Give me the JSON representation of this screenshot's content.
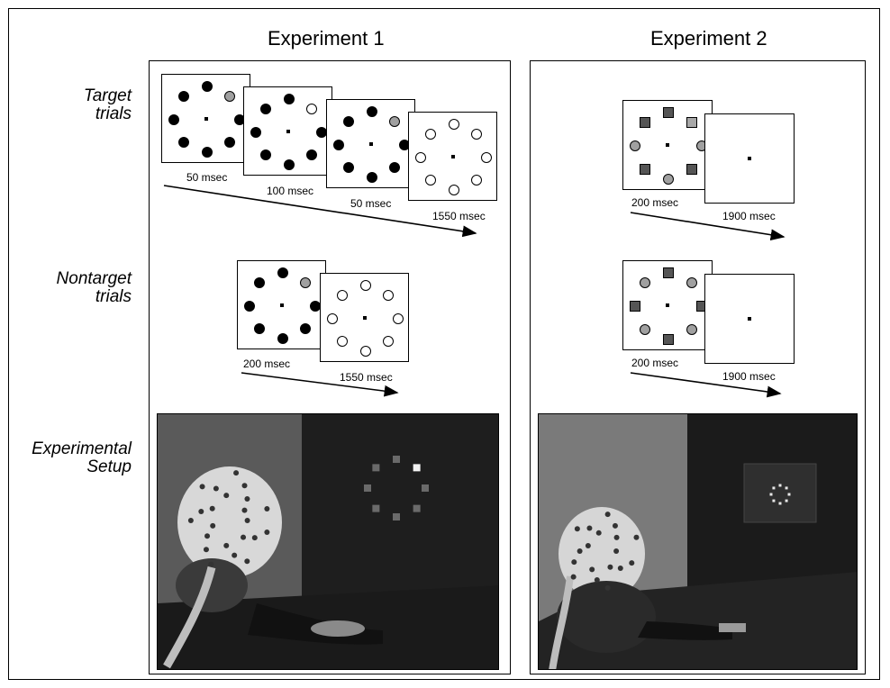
{
  "experiment1": {
    "title": "Experiment 1"
  },
  "experiment2": {
    "title": "Experiment 2"
  },
  "row_labels": {
    "target": [
      "Target",
      "trials"
    ],
    "nontarget": [
      "Nontarget",
      "trials"
    ],
    "setup": [
      "Experimental",
      "Setup"
    ]
  },
  "exp1_target_durations": [
    "50 msec",
    "100 msec",
    "50 msec",
    "1550 msec"
  ],
  "exp1_nontarget_durations": [
    "200 msec",
    "1550 msec"
  ],
  "exp2_target_durations": [
    "200 msec",
    "1900 msec"
  ],
  "exp2_nontarget_durations": [
    "200 msec",
    "1900 msec"
  ],
  "colors": {
    "black": "#000000",
    "gray": "#a0a0a0",
    "white": "#ffffff",
    "square_dark": "#555555",
    "square_light": "#a8a8a8",
    "photo_bg": "#2a2a2a"
  }
}
